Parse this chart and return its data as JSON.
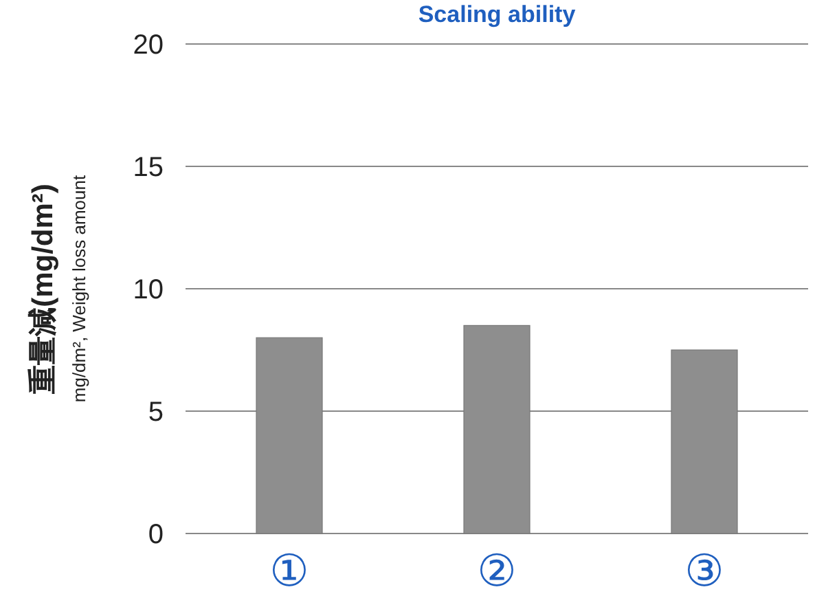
{
  "chart_data": {
    "type": "bar",
    "title": "Scaling ability",
    "ylabel": "重量減(mg/dm²)",
    "annotations": [
      "mg/dm², Weight loss amount"
    ],
    "categories": [
      "①",
      "②",
      "③"
    ],
    "values": [
      8.0,
      8.5,
      7.5
    ],
    "color": "#8e8e8e",
    "ylim": [
      0,
      20
    ],
    "yticks": [
      0,
      5,
      10,
      15,
      20
    ],
    "grid": "y"
  }
}
